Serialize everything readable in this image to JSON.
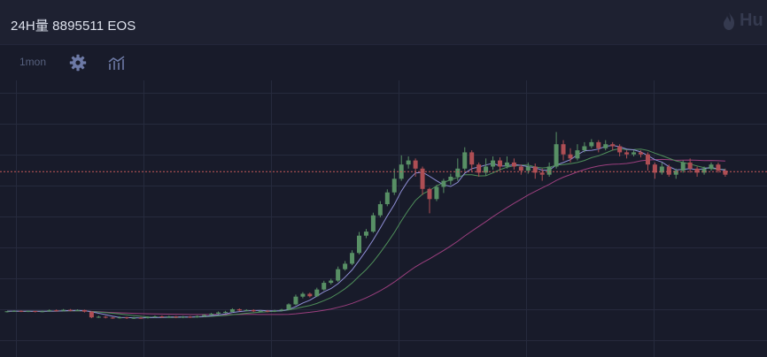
{
  "header": {
    "volume_text": "24H量 8895511 EOS",
    "logo_text": "Hu"
  },
  "toolbar": {
    "period_label": "1mon",
    "settings_icon": "gear-icon",
    "indicator_icon": "indicator-chart-icon"
  },
  "colors": {
    "background": "#181b2a",
    "header_bg": "#1e2131",
    "grid": "#262a3d",
    "up": "#589065",
    "down": "#ae4e54",
    "ma_fast": "#8f8fd6",
    "ma_mid": "#4f8f5a",
    "ma_slow": "#9b3f7e",
    "price_line": "#c75a5a"
  },
  "chart_data": {
    "type": "candlestick",
    "title": "",
    "ylim": [
      0,
      100
    ],
    "current_price_level": 72.5,
    "grid": true,
    "candles": [
      [
        3.6,
        3.8,
        3.2,
        3.9
      ],
      [
        3.8,
        4.0,
        3.5,
        4.3
      ],
      [
        4.0,
        3.7,
        3.4,
        4.3
      ],
      [
        3.7,
        3.9,
        3.4,
        4.2
      ],
      [
        3.9,
        3.6,
        3.2,
        4.1
      ],
      [
        3.6,
        3.8,
        3.3,
        4.2
      ],
      [
        3.8,
        4.3,
        3.5,
        4.7
      ],
      [
        4.3,
        4.0,
        3.6,
        4.7
      ],
      [
        4.0,
        4.5,
        3.7,
        4.9
      ],
      [
        4.5,
        4.2,
        3.8,
        4.9
      ],
      [
        4.2,
        4.4,
        3.9,
        4.8
      ],
      [
        4.4,
        3.6,
        3.2,
        4.6
      ],
      [
        3.6,
        0.8,
        0.4,
        3.9
      ],
      [
        0.8,
        1.1,
        0.5,
        1.6
      ],
      [
        1.1,
        0.7,
        0.3,
        1.5
      ],
      [
        0.7,
        0.5,
        0.1,
        1.0
      ],
      [
        0.5,
        0.8,
        0.2,
        1.3
      ],
      [
        0.8,
        0.4,
        0.0,
        1.1
      ],
      [
        0.4,
        0.6,
        0.0,
        1.0
      ],
      [
        0.6,
        0.5,
        0.1,
        1.0
      ],
      [
        0.5,
        0.9,
        0.2,
        1.3
      ],
      [
        0.9,
        1.3,
        0.6,
        1.7
      ],
      [
        1.3,
        0.9,
        0.5,
        1.7
      ],
      [
        0.9,
        1.2,
        0.6,
        1.6
      ],
      [
        1.2,
        0.8,
        0.4,
        1.5
      ],
      [
        0.8,
        1.1,
        0.4,
        1.5
      ],
      [
        1.1,
        0.9,
        0.5,
        1.5
      ],
      [
        0.9,
        1.4,
        0.6,
        1.8
      ],
      [
        1.4,
        2.0,
        1.1,
        2.4
      ],
      [
        2.0,
        2.6,
        1.8,
        3.0
      ],
      [
        2.6,
        3.2,
        2.3,
        3.7
      ],
      [
        3.2,
        3.5,
        2.8,
        4.0
      ],
      [
        3.5,
        4.8,
        3.2,
        5.3
      ],
      [
        4.8,
        4.2,
        3.8,
        5.2
      ],
      [
        4.2,
        4.4,
        3.8,
        4.8
      ],
      [
        4.4,
        3.8,
        3.4,
        4.8
      ],
      [
        3.8,
        4.0,
        3.5,
        4.4
      ],
      [
        4.0,
        3.6,
        3.3,
        4.4
      ],
      [
        3.6,
        4.1,
        3.4,
        4.5
      ],
      [
        4.1,
        4.6,
        3.8,
        5.0
      ],
      [
        4.6,
        7.2,
        4.4,
        7.7
      ],
      [
        7.2,
        11.0,
        6.8,
        12.0
      ],
      [
        11.0,
        12.4,
        10.2,
        13.2
      ],
      [
        12.4,
        11.2,
        10.6,
        13.0
      ],
      [
        11.2,
        14.5,
        10.8,
        15.4
      ],
      [
        14.5,
        17.8,
        14.0,
        18.8
      ],
      [
        17.8,
        18.9,
        17.0,
        19.8
      ],
      [
        18.9,
        24.5,
        18.2,
        25.8
      ],
      [
        24.5,
        27.2,
        23.8,
        28.5
      ],
      [
        27.2,
        32.5,
        26.5,
        33.8
      ],
      [
        32.5,
        41.0,
        31.8,
        42.8
      ],
      [
        41.0,
        43.0,
        39.8,
        44.3
      ],
      [
        43.0,
        51.0,
        42.4,
        52.3
      ],
      [
        51.0,
        56.5,
        50.0,
        58.0
      ],
      [
        56.5,
        62.3,
        55.5,
        63.8
      ],
      [
        62.3,
        69.0,
        61.0,
        74.0
      ],
      [
        69.0,
        76.0,
        68.0,
        80.5
      ],
      [
        76.0,
        78.0,
        74.0,
        80.0
      ],
      [
        78.0,
        74.0,
        70.0,
        79.0
      ],
      [
        74.0,
        64.0,
        61.0,
        75.0
      ],
      [
        64.0,
        59.0,
        52.0,
        64.6
      ],
      [
        59.0,
        65.0,
        58.0,
        66.0
      ],
      [
        65.0,
        68.0,
        62.0,
        69.0
      ],
      [
        68.0,
        70.0,
        66.0,
        71.5
      ],
      [
        70.0,
        74.0,
        68.0,
        79.0
      ],
      [
        74.0,
        82.0,
        73.0,
        84.5
      ],
      [
        82.0,
        76.0,
        72.5,
        83.0
      ],
      [
        76.0,
        72.0,
        70.0,
        77.0
      ],
      [
        72.0,
        75.0,
        70.5,
        79.0
      ],
      [
        75.0,
        78.0,
        73.5,
        80.0
      ],
      [
        78.0,
        75.0,
        73.0,
        79.5
      ],
      [
        75.0,
        77.0,
        74.0,
        80.0
      ],
      [
        77.0,
        75.0,
        73.5,
        79.0
      ],
      [
        75.0,
        73.0,
        71.0,
        76.0
      ],
      [
        73.0,
        75.0,
        71.5,
        77.0
      ],
      [
        75.0,
        72.0,
        69.0,
        76.5
      ],
      [
        72.0,
        71.0,
        68.0,
        74.0
      ],
      [
        71.0,
        75.0,
        70.0,
        77.0
      ],
      [
        75.0,
        86.0,
        74.0,
        92.0
      ],
      [
        86.0,
        81.0,
        78.0,
        88.0
      ],
      [
        81.0,
        79.0,
        77.0,
        84.0
      ],
      [
        79.0,
        83.0,
        78.0,
        86.0
      ],
      [
        83.0,
        85.0,
        82.0,
        87.0
      ],
      [
        85.0,
        87.0,
        84.0,
        88.5
      ],
      [
        87.0,
        84.0,
        82.0,
        88.0
      ],
      [
        84.0,
        86.0,
        83.0,
        88.0
      ],
      [
        86.0,
        85.0,
        83.0,
        87.0
      ],
      [
        85.0,
        82.0,
        80.0,
        86.0
      ],
      [
        82.0,
        81.0,
        79.0,
        83.0
      ],
      [
        81.0,
        82.0,
        80.0,
        83.0
      ],
      [
        82.0,
        81.0,
        79.5,
        83.0
      ],
      [
        81.0,
        76.0,
        73.0,
        82.0
      ],
      [
        76.0,
        72.0,
        69.0,
        77.0
      ],
      [
        72.0,
        75.0,
        71.0,
        77.0
      ],
      [
        75.0,
        71.0,
        70.0,
        76.0
      ],
      [
        71.0,
        73.0,
        69.0,
        74.0
      ],
      [
        73.0,
        77.0,
        72.0,
        78.0
      ],
      [
        77.0,
        74.0,
        72.0,
        79.0
      ],
      [
        74.0,
        72.0,
        70.0,
        75.0
      ],
      [
        72.0,
        74.0,
        71.0,
        75.0
      ],
      [
        74.0,
        76.0,
        73.0,
        77.0
      ],
      [
        76.0,
        73.0,
        72.0,
        77.0
      ],
      [
        73.0,
        71.0,
        70.0,
        74.0
      ]
    ],
    "note": "candles are [open, close, low, high] in relative price units"
  }
}
